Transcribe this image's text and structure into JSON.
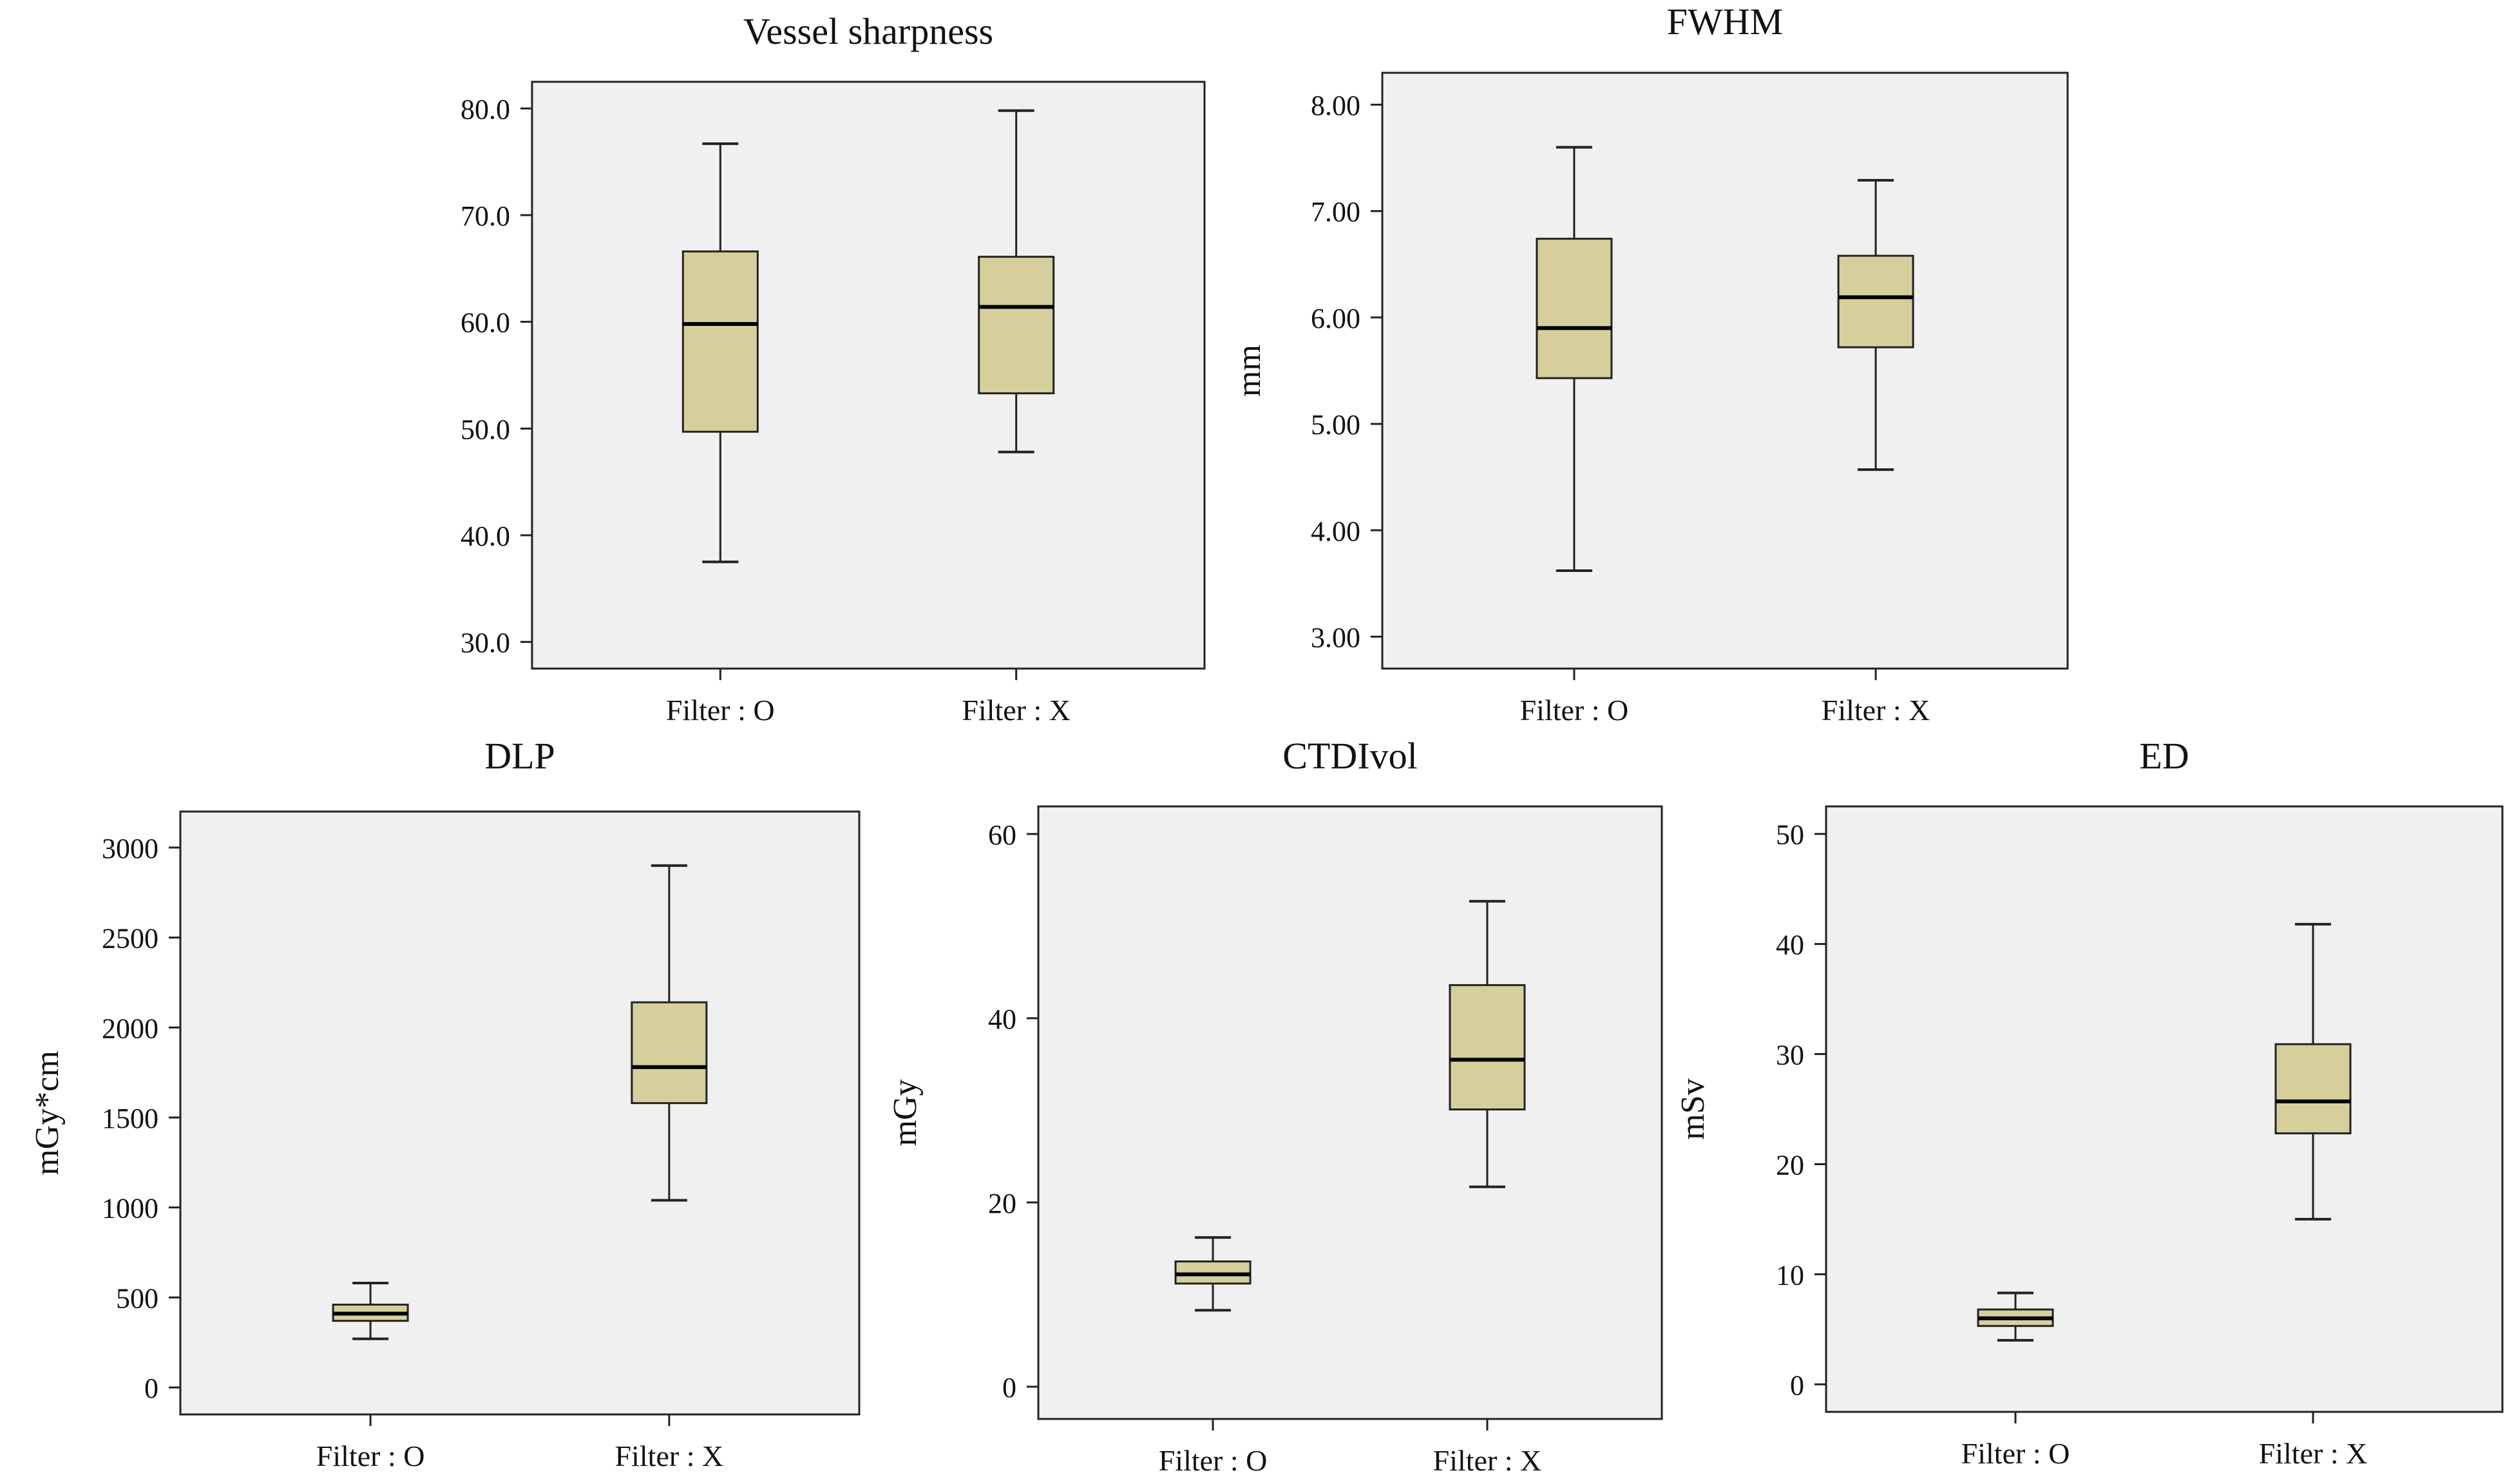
{
  "figure": {
    "colors": {
      "plot_bg": "#f0f0f0",
      "box_fill": "#d6cf9c",
      "stroke": "#222222",
      "page_bg": "#ffffff"
    }
  },
  "chart_data": [
    {
      "id": "vessel",
      "type": "box",
      "title": "Vessel sharpness",
      "ylabel": "",
      "ylim": [
        27.5,
        82.5
      ],
      "yticks": [
        "30.0",
        "40.0",
        "50.0",
        "60.0",
        "70.0",
        "80.0"
      ],
      "ytick_values": [
        30,
        40,
        50,
        60,
        70,
        80
      ],
      "categories": [
        "Filter : O",
        "Filter : X"
      ],
      "boxes": [
        {
          "min": 37.5,
          "q1": 49.7,
          "median": 59.8,
          "q3": 66.6,
          "max": 76.7
        },
        {
          "min": 47.8,
          "q1": 53.3,
          "median": 61.4,
          "q3": 66.1,
          "max": 79.8
        }
      ]
    },
    {
      "id": "fwhm",
      "type": "box",
      "title": "FWHM",
      "ylabel": "mm",
      "ylim": [
        2.7,
        8.3
      ],
      "yticks": [
        "3.00",
        "4.00",
        "5.00",
        "6.00",
        "7.00",
        "8.00"
      ],
      "ytick_values": [
        3,
        4,
        5,
        6,
        7,
        8
      ],
      "categories": [
        "Filter : O",
        "Filter : X"
      ],
      "boxes": [
        {
          "min": 3.62,
          "q1": 5.43,
          "median": 5.9,
          "q3": 6.74,
          "max": 7.6
        },
        {
          "min": 4.57,
          "q1": 5.72,
          "median": 6.19,
          "q3": 6.58,
          "max": 7.29
        }
      ]
    },
    {
      "id": "dlp",
      "type": "box",
      "title": "DLP",
      "ylabel": "mGy*cm",
      "ylim": [
        -150,
        3200
      ],
      "yticks": [
        "0",
        "500",
        "1000",
        "1500",
        "2000",
        "2500",
        "3000"
      ],
      "ytick_values": [
        0,
        500,
        1000,
        1500,
        2000,
        2500,
        3000
      ],
      "categories": [
        "Filter : O",
        "Filter : X"
      ],
      "boxes": [
        {
          "min": 270,
          "q1": 370,
          "median": 410,
          "q3": 460,
          "max": 580
        },
        {
          "min": 1040,
          "q1": 1580,
          "median": 1780,
          "q3": 2140,
          "max": 2900
        }
      ]
    },
    {
      "id": "ctdi",
      "type": "box",
      "title": "CTDIvol",
      "ylabel": "mGy",
      "ylim": [
        -3.5,
        63
      ],
      "yticks": [
        "0",
        "20",
        "40",
        "60"
      ],
      "ytick_values": [
        0,
        20,
        40,
        60
      ],
      "categories": [
        "Filter : O",
        "Filter : X"
      ],
      "boxes": [
        {
          "min": 8.3,
          "q1": 11.2,
          "median": 12.2,
          "q3": 13.6,
          "max": 16.2
        },
        {
          "min": 21.7,
          "q1": 30.1,
          "median": 35.5,
          "q3": 43.6,
          "max": 52.7
        }
      ]
    },
    {
      "id": "ed",
      "type": "box",
      "title": "ED",
      "ylabel": "mSv",
      "ylim": [
        -2.5,
        52.5
      ],
      "yticks": [
        "0",
        "10",
        "20",
        "30",
        "40",
        "50"
      ],
      "ytick_values": [
        0,
        10,
        20,
        30,
        40,
        50
      ],
      "categories": [
        "Filter : O",
        "Filter : X"
      ],
      "boxes": [
        {
          "min": 4.0,
          "q1": 5.3,
          "median": 6.0,
          "q3": 6.8,
          "max": 8.3
        },
        {
          "min": 15.0,
          "q1": 22.8,
          "median": 25.7,
          "q3": 30.9,
          "max": 41.8
        }
      ]
    }
  ]
}
